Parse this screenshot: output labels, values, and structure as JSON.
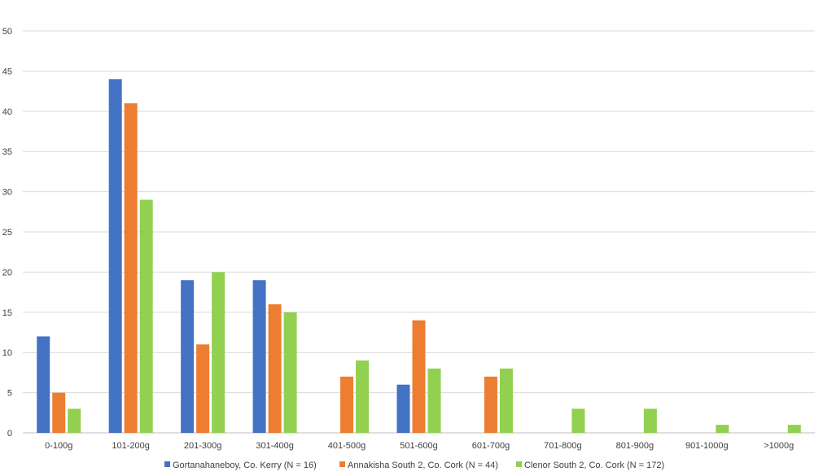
{
  "chart_data": {
    "type": "bar",
    "title": "",
    "xlabel": "",
    "ylabel": "",
    "ylim": [
      0,
      50
    ],
    "yticks": [
      0,
      5,
      10,
      15,
      20,
      25,
      30,
      35,
      40,
      45,
      50
    ],
    "grid": true,
    "legend_position": "bottom",
    "categories": [
      "0-100g",
      "101-200g",
      "201-300g",
      "301-400g",
      "401-500g",
      "501-600g",
      "601-700g",
      "701-800g",
      "801-900g",
      "901-1000g",
      ">1000g"
    ],
    "series": [
      {
        "name": "Gortanahaneboy, Co. Kerry (N = 16)",
        "color": "#4472C4",
        "values": [
          12,
          44,
          19,
          19,
          0,
          6,
          0,
          0,
          0,
          0,
          0
        ]
      },
      {
        "name": "Annakisha South 2, Co. Cork (N = 44)",
        "color": "#ED7D31",
        "values": [
          5,
          41,
          11,
          16,
          7,
          14,
          7,
          0,
          0,
          0,
          0
        ]
      },
      {
        "name": "Clenor South 2, Co. Cork (N = 172)",
        "color": "#92D050",
        "values": [
          3,
          29,
          20,
          15,
          9,
          8,
          8,
          3,
          3,
          1,
          1
        ]
      }
    ]
  }
}
